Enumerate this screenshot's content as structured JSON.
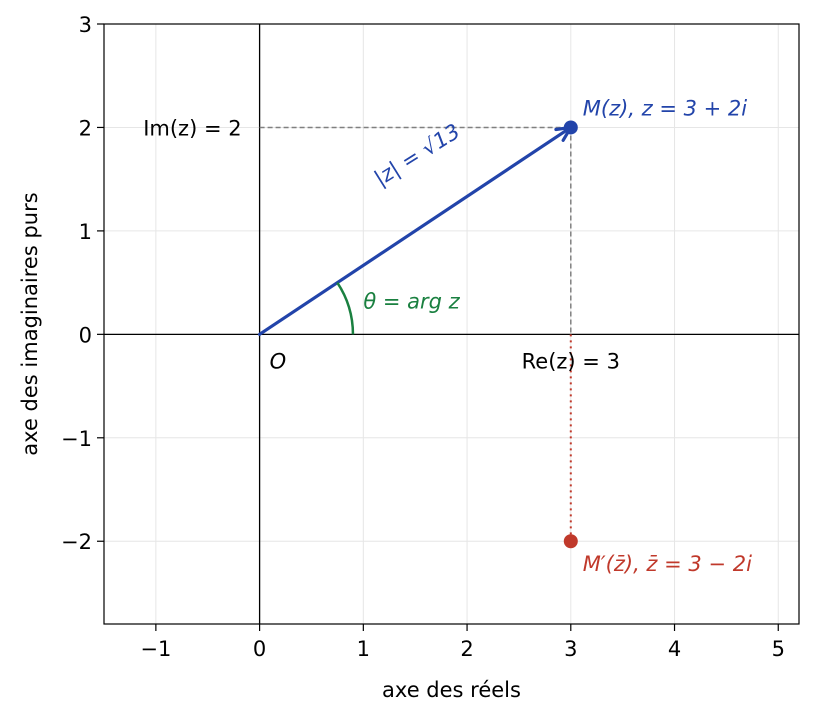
{
  "chart_data": {
    "type": "scatter",
    "xlabel": "axe des réels",
    "ylabel": "axe des imaginaires purs",
    "xlim": [
      -1.5,
      5.2
    ],
    "ylim": [
      -2.8,
      3
    ],
    "xticks": [
      -1,
      0,
      1,
      2,
      3,
      4,
      5
    ],
    "yticks": [
      -2,
      -1,
      0,
      1,
      2,
      3
    ],
    "xtick_labels": [
      "−1",
      "0",
      "1",
      "2",
      "3",
      "4",
      "5"
    ],
    "ytick_labels": [
      "−2",
      "−1",
      "0",
      "1",
      "2",
      "3"
    ],
    "grid": true,
    "points": [
      {
        "x": 3,
        "y": 2,
        "color": "#2244aa",
        "label": "M(z), z = 3 + 2i"
      },
      {
        "x": 3,
        "y": -2,
        "color": "#c0392b",
        "label": "M′(z̄), z̄ = 3 − 2i"
      }
    ],
    "vector": {
      "from": [
        0,
        0
      ],
      "to": [
        3,
        2
      ],
      "color": "#2244aa",
      "label": "|z| = √13"
    },
    "angle": {
      "label": "θ = arg z",
      "color": "#1a8040"
    },
    "annotations": {
      "origin": "O",
      "re": "Re(z) = 3",
      "im": "Im(z) = 2"
    },
    "colors": {
      "z": "#2244aa",
      "conjugate": "#c0392b",
      "angle": "#1a8040",
      "guide": "#808080"
    }
  }
}
